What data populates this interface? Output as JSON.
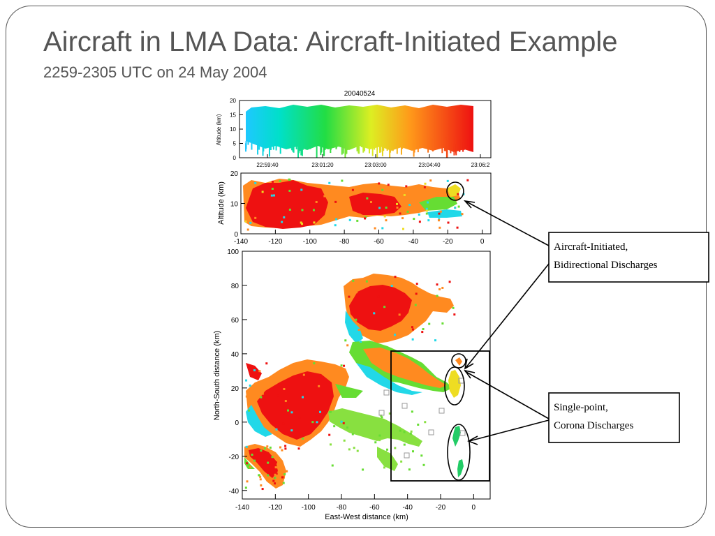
{
  "slide": {
    "title": "Aircraft in LMA Data: Aircraft-Initiated Example",
    "subtitle": "2259-2305 UTC on 24 May 2004"
  },
  "chart_data": [
    {
      "type": "scatter",
      "panel": "time-altitude",
      "title": "20040524",
      "xlabel": "",
      "ylabel": "Altitude (km)",
      "x_ticks": [
        "22:59:40",
        "23:01:20",
        "23:03:00",
        "23:04:40",
        "23:06:2"
      ],
      "y_ticks": [
        0,
        5,
        10,
        15,
        20
      ],
      "ylim": [
        0,
        20
      ],
      "color_encoding": "time (blue to red)"
    },
    {
      "type": "scatter",
      "panel": "east-west-altitude",
      "xlabel": "",
      "ylabel": "Altitude (km)",
      "x_ticks": [
        -140,
        -120,
        -100,
        -80,
        -60,
        -40,
        -20,
        0
      ],
      "y_ticks": [
        0,
        10,
        20
      ],
      "xlim": [
        -140,
        5
      ],
      "ylim": [
        0,
        20
      ]
    },
    {
      "type": "scatter",
      "panel": "plan-view",
      "xlabel": "East-West distance (km)",
      "ylabel": "North-South distance (km)",
      "x_ticks": [
        -140,
        -120,
        -100,
        -80,
        -60,
        -40,
        -20,
        0
      ],
      "y_ticks": [
        -40,
        -20,
        0,
        20,
        40,
        60,
        80,
        100
      ],
      "xlim": [
        -140,
        10
      ],
      "ylim": [
        -45,
        100
      ]
    }
  ],
  "callouts": [
    {
      "line1": "Aircraft-Initiated,",
      "line2": "Bidirectional Discharges"
    },
    {
      "line1": "Single-point,",
      "line2": "Corona Discharges"
    }
  ]
}
